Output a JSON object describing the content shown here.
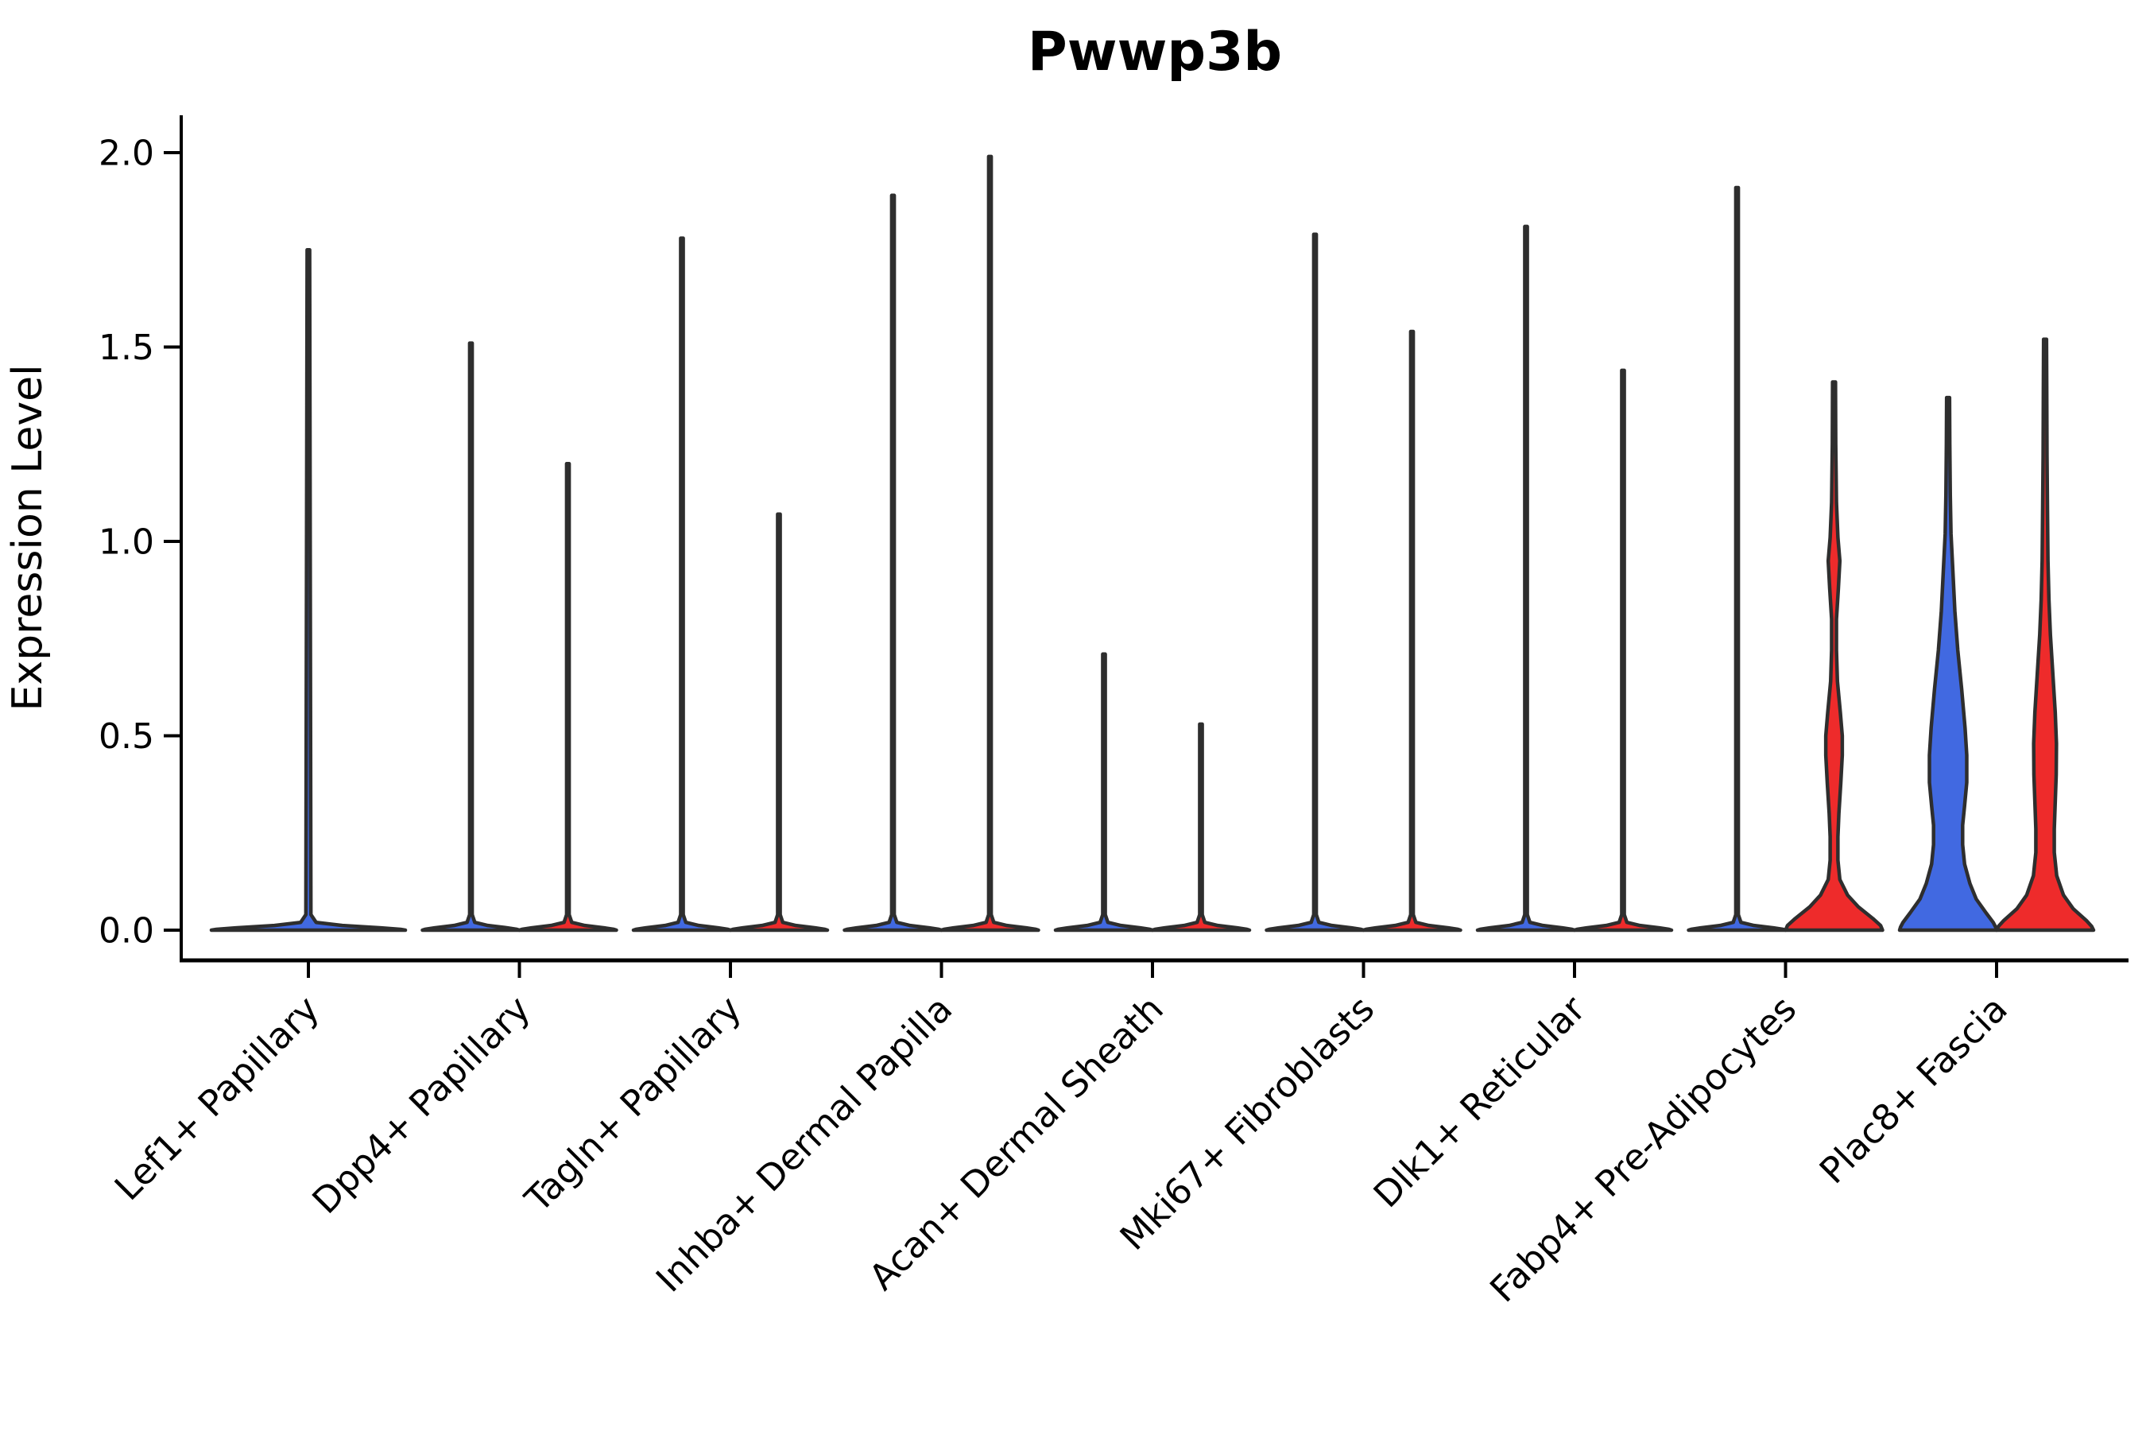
{
  "figure": {
    "title": "Pwwp3b",
    "background": "#ffffff"
  },
  "chart_data": {
    "type": "violin",
    "title": "Pwwp3b",
    "xlabel": "",
    "ylabel": "Expression Level",
    "ylim": [
      0,
      2.05
    ],
    "ytick_labels": [
      "0.0",
      "0.5",
      "1.0",
      "1.5",
      "2.0"
    ],
    "ytick_values": [
      0,
      0.5,
      1.0,
      1.5,
      2.0
    ],
    "grid": false,
    "legend": "none",
    "outline_color": "#2e2e2e",
    "axis_color": "#000000",
    "groups": [
      {
        "name": "group-1",
        "color": "#4169E1"
      },
      {
        "name": "group-2",
        "color": "#EE2B2B"
      }
    ],
    "categories": [
      "Lef1+ Papillary",
      "Dpp4+ Papillary",
      "Tagln+ Papillary",
      "Inhba+ Dermal Papilla",
      "Acan+ Dermal Sheath",
      "Mki67+ Fibroblasts",
      "Dlk1+ Reticular",
      "Fabp4+ Pre-Adipocytes",
      "Plac8+ Fascia"
    ],
    "spike_profile": [
      [
        1,
        0.026
      ],
      [
        0.04,
        0.026
      ],
      [
        0.02,
        0.08
      ],
      [
        0.012,
        0.35
      ],
      [
        0.006,
        0.75
      ],
      [
        0.002,
        0.95
      ],
      [
        0,
        1
      ]
    ],
    "violins": [
      {
        "category": 0,
        "group": 1,
        "offset": 0,
        "half_width": 122,
        "spike_frac": 0.013,
        "max": 1.75,
        "shape": "spike"
      },
      {
        "category": 1,
        "group": 1,
        "offset": -61,
        "half_width": 61,
        "max": 1.51,
        "shape": "spike"
      },
      {
        "category": 1,
        "group": 2,
        "offset": 61,
        "half_width": 61,
        "max": 1.2,
        "shape": "spike"
      },
      {
        "category": 2,
        "group": 1,
        "offset": -61,
        "half_width": 61,
        "max": 1.78,
        "shape": "spike"
      },
      {
        "category": 2,
        "group": 2,
        "offset": 61,
        "half_width": 61,
        "max": 1.07,
        "shape": "spike"
      },
      {
        "category": 3,
        "group": 1,
        "offset": -61,
        "half_width": 61,
        "max": 1.89,
        "shape": "spike"
      },
      {
        "category": 3,
        "group": 2,
        "offset": 61,
        "half_width": 61,
        "max": 1.99,
        "shape": "spike"
      },
      {
        "category": 4,
        "group": 1,
        "offset": -61,
        "half_width": 61,
        "max": 0.71,
        "shape": "spike"
      },
      {
        "category": 4,
        "group": 2,
        "offset": 61,
        "half_width": 61,
        "max": 0.53,
        "shape": "spike"
      },
      {
        "category": 5,
        "group": 1,
        "offset": -61,
        "half_width": 61,
        "max": 1.79,
        "shape": "spike"
      },
      {
        "category": 5,
        "group": 2,
        "offset": 61,
        "half_width": 61,
        "max": 1.54,
        "shape": "spike"
      },
      {
        "category": 6,
        "group": 1,
        "offset": -61,
        "half_width": 61,
        "max": 1.81,
        "shape": "spike"
      },
      {
        "category": 6,
        "group": 2,
        "offset": 61,
        "half_width": 61,
        "max": 1.44,
        "shape": "spike"
      },
      {
        "category": 7,
        "group": 1,
        "offset": -61,
        "half_width": 61,
        "max": 1.91,
        "shape": "spike"
      },
      {
        "category": 7,
        "group": 2,
        "offset": 61,
        "half_width": 61,
        "max": 1.41,
        "shape": "full",
        "profile": [
          [
            1.41,
            0.03
          ],
          [
            1.25,
            0.035
          ],
          [
            1.1,
            0.05
          ],
          [
            1.01,
            0.08
          ],
          [
            0.95,
            0.12
          ],
          [
            0.88,
            0.09
          ],
          [
            0.8,
            0.05
          ],
          [
            0.72,
            0.05
          ],
          [
            0.64,
            0.07
          ],
          [
            0.56,
            0.13
          ],
          [
            0.5,
            0.17
          ],
          [
            0.45,
            0.17
          ],
          [
            0.38,
            0.14
          ],
          [
            0.3,
            0.1
          ],
          [
            0.24,
            0.08
          ],
          [
            0.18,
            0.08
          ],
          [
            0.13,
            0.12
          ],
          [
            0.09,
            0.28
          ],
          [
            0.06,
            0.5
          ],
          [
            0.03,
            0.8
          ],
          [
            0.012,
            0.96
          ],
          [
            0,
            1
          ]
        ]
      },
      {
        "category": 8,
        "group": 1,
        "offset": -61,
        "half_width": 61,
        "max": 1.37,
        "shape": "full",
        "profile": [
          [
            1.37,
            0.03
          ],
          [
            1.25,
            0.035
          ],
          [
            1.12,
            0.045
          ],
          [
            1.02,
            0.06
          ],
          [
            0.92,
            0.1
          ],
          [
            0.82,
            0.14
          ],
          [
            0.72,
            0.2
          ],
          [
            0.62,
            0.28
          ],
          [
            0.52,
            0.35
          ],
          [
            0.45,
            0.385
          ],
          [
            0.38,
            0.385
          ],
          [
            0.32,
            0.34
          ],
          [
            0.27,
            0.3
          ],
          [
            0.22,
            0.3
          ],
          [
            0.17,
            0.34
          ],
          [
            0.12,
            0.45
          ],
          [
            0.08,
            0.58
          ],
          [
            0.045,
            0.78
          ],
          [
            0.02,
            0.93
          ],
          [
            0.008,
            0.98
          ],
          [
            0,
            1
          ]
        ]
      },
      {
        "category": 8,
        "group": 2,
        "offset": 61,
        "half_width": 61,
        "max": 1.52,
        "shape": "full",
        "profile": [
          [
            1.52,
            0.03
          ],
          [
            1.38,
            0.035
          ],
          [
            1.22,
            0.04
          ],
          [
            1.08,
            0.05
          ],
          [
            0.95,
            0.06
          ],
          [
            0.85,
            0.08
          ],
          [
            0.76,
            0.11
          ],
          [
            0.66,
            0.16
          ],
          [
            0.56,
            0.21
          ],
          [
            0.48,
            0.235
          ],
          [
            0.4,
            0.23
          ],
          [
            0.33,
            0.21
          ],
          [
            0.26,
            0.19
          ],
          [
            0.2,
            0.19
          ],
          [
            0.14,
            0.24
          ],
          [
            0.09,
            0.38
          ],
          [
            0.055,
            0.58
          ],
          [
            0.025,
            0.85
          ],
          [
            0.01,
            0.96
          ],
          [
            0,
            1
          ]
        ]
      }
    ]
  }
}
